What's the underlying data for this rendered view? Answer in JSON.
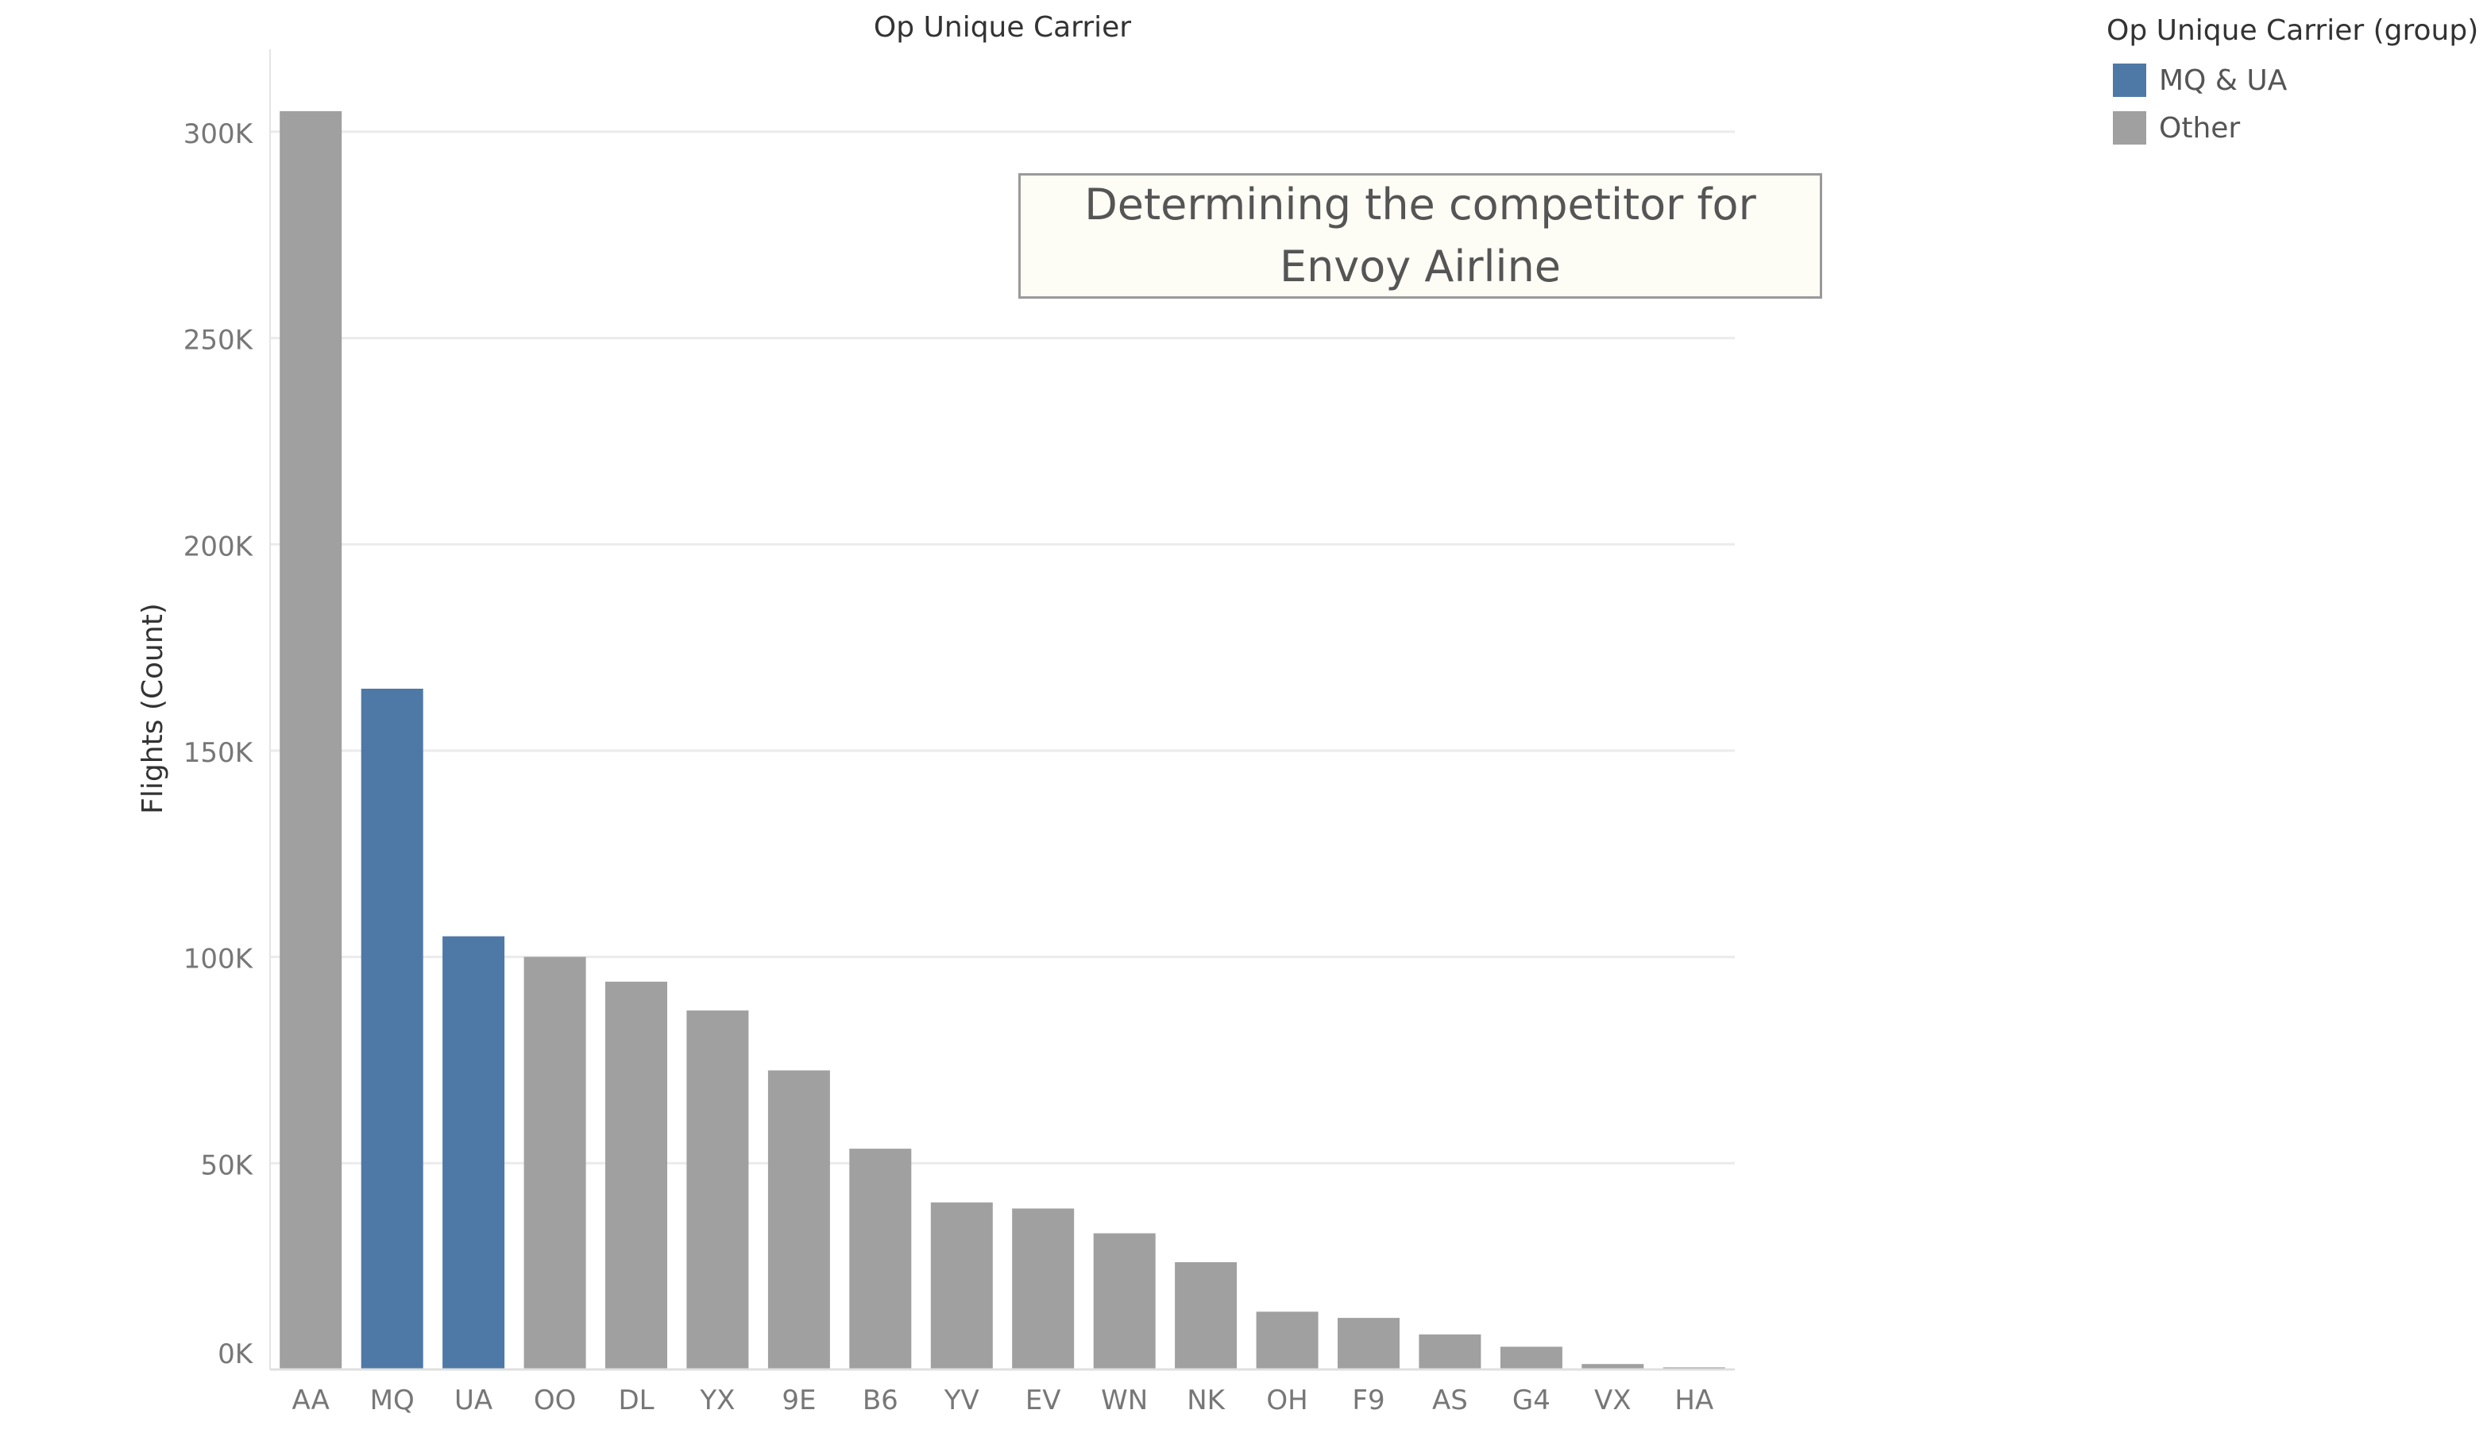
{
  "chart_data": {
    "type": "bar",
    "title": "Op Unique Carrier",
    "xlabel": "",
    "ylabel": "Flights (Count)",
    "ylim": [
      0,
      320000
    ],
    "yticks": [
      0,
      50000,
      100000,
      150000,
      200000,
      250000,
      300000
    ],
    "ytick_labels": [
      "0K",
      "50K",
      "100K",
      "150K",
      "200K",
      "250K",
      "300K"
    ],
    "grid": true,
    "categories": [
      "AA",
      "MQ",
      "UA",
      "OO",
      "DL",
      "YX",
      "9E",
      "B6",
      "YV",
      "EV",
      "WN",
      "NK",
      "OH",
      "F9",
      "AS",
      "G4",
      "VX",
      "HA"
    ],
    "values": [
      305000,
      165000,
      105000,
      100000,
      94000,
      87000,
      72500,
      53500,
      40500,
      39000,
      33000,
      26000,
      14000,
      12500,
      8500,
      5500,
      1300,
      500
    ],
    "groups": [
      "Other",
      "MQ & UA",
      "MQ & UA",
      "Other",
      "Other",
      "Other",
      "Other",
      "Other",
      "Other",
      "Other",
      "Other",
      "Other",
      "Other",
      "Other",
      "Other",
      "Other",
      "Other",
      "Other"
    ],
    "legend": {
      "title": "Op Unique Carrier (group)",
      "placement": "top-right",
      "entries": [
        {
          "name": "MQ & UA",
          "color": "#4e79a7"
        },
        {
          "name": "Other",
          "color": "#a0a0a0"
        }
      ]
    }
  },
  "annotation": {
    "line1": "Determining the competitor for",
    "line2": "Envoy Airline"
  },
  "colors": {
    "highlight": "#4e79a7",
    "other": "#a0a0a0",
    "gridline": "#ebebeb",
    "axis_text": "#777777",
    "title_text": "#333333"
  }
}
